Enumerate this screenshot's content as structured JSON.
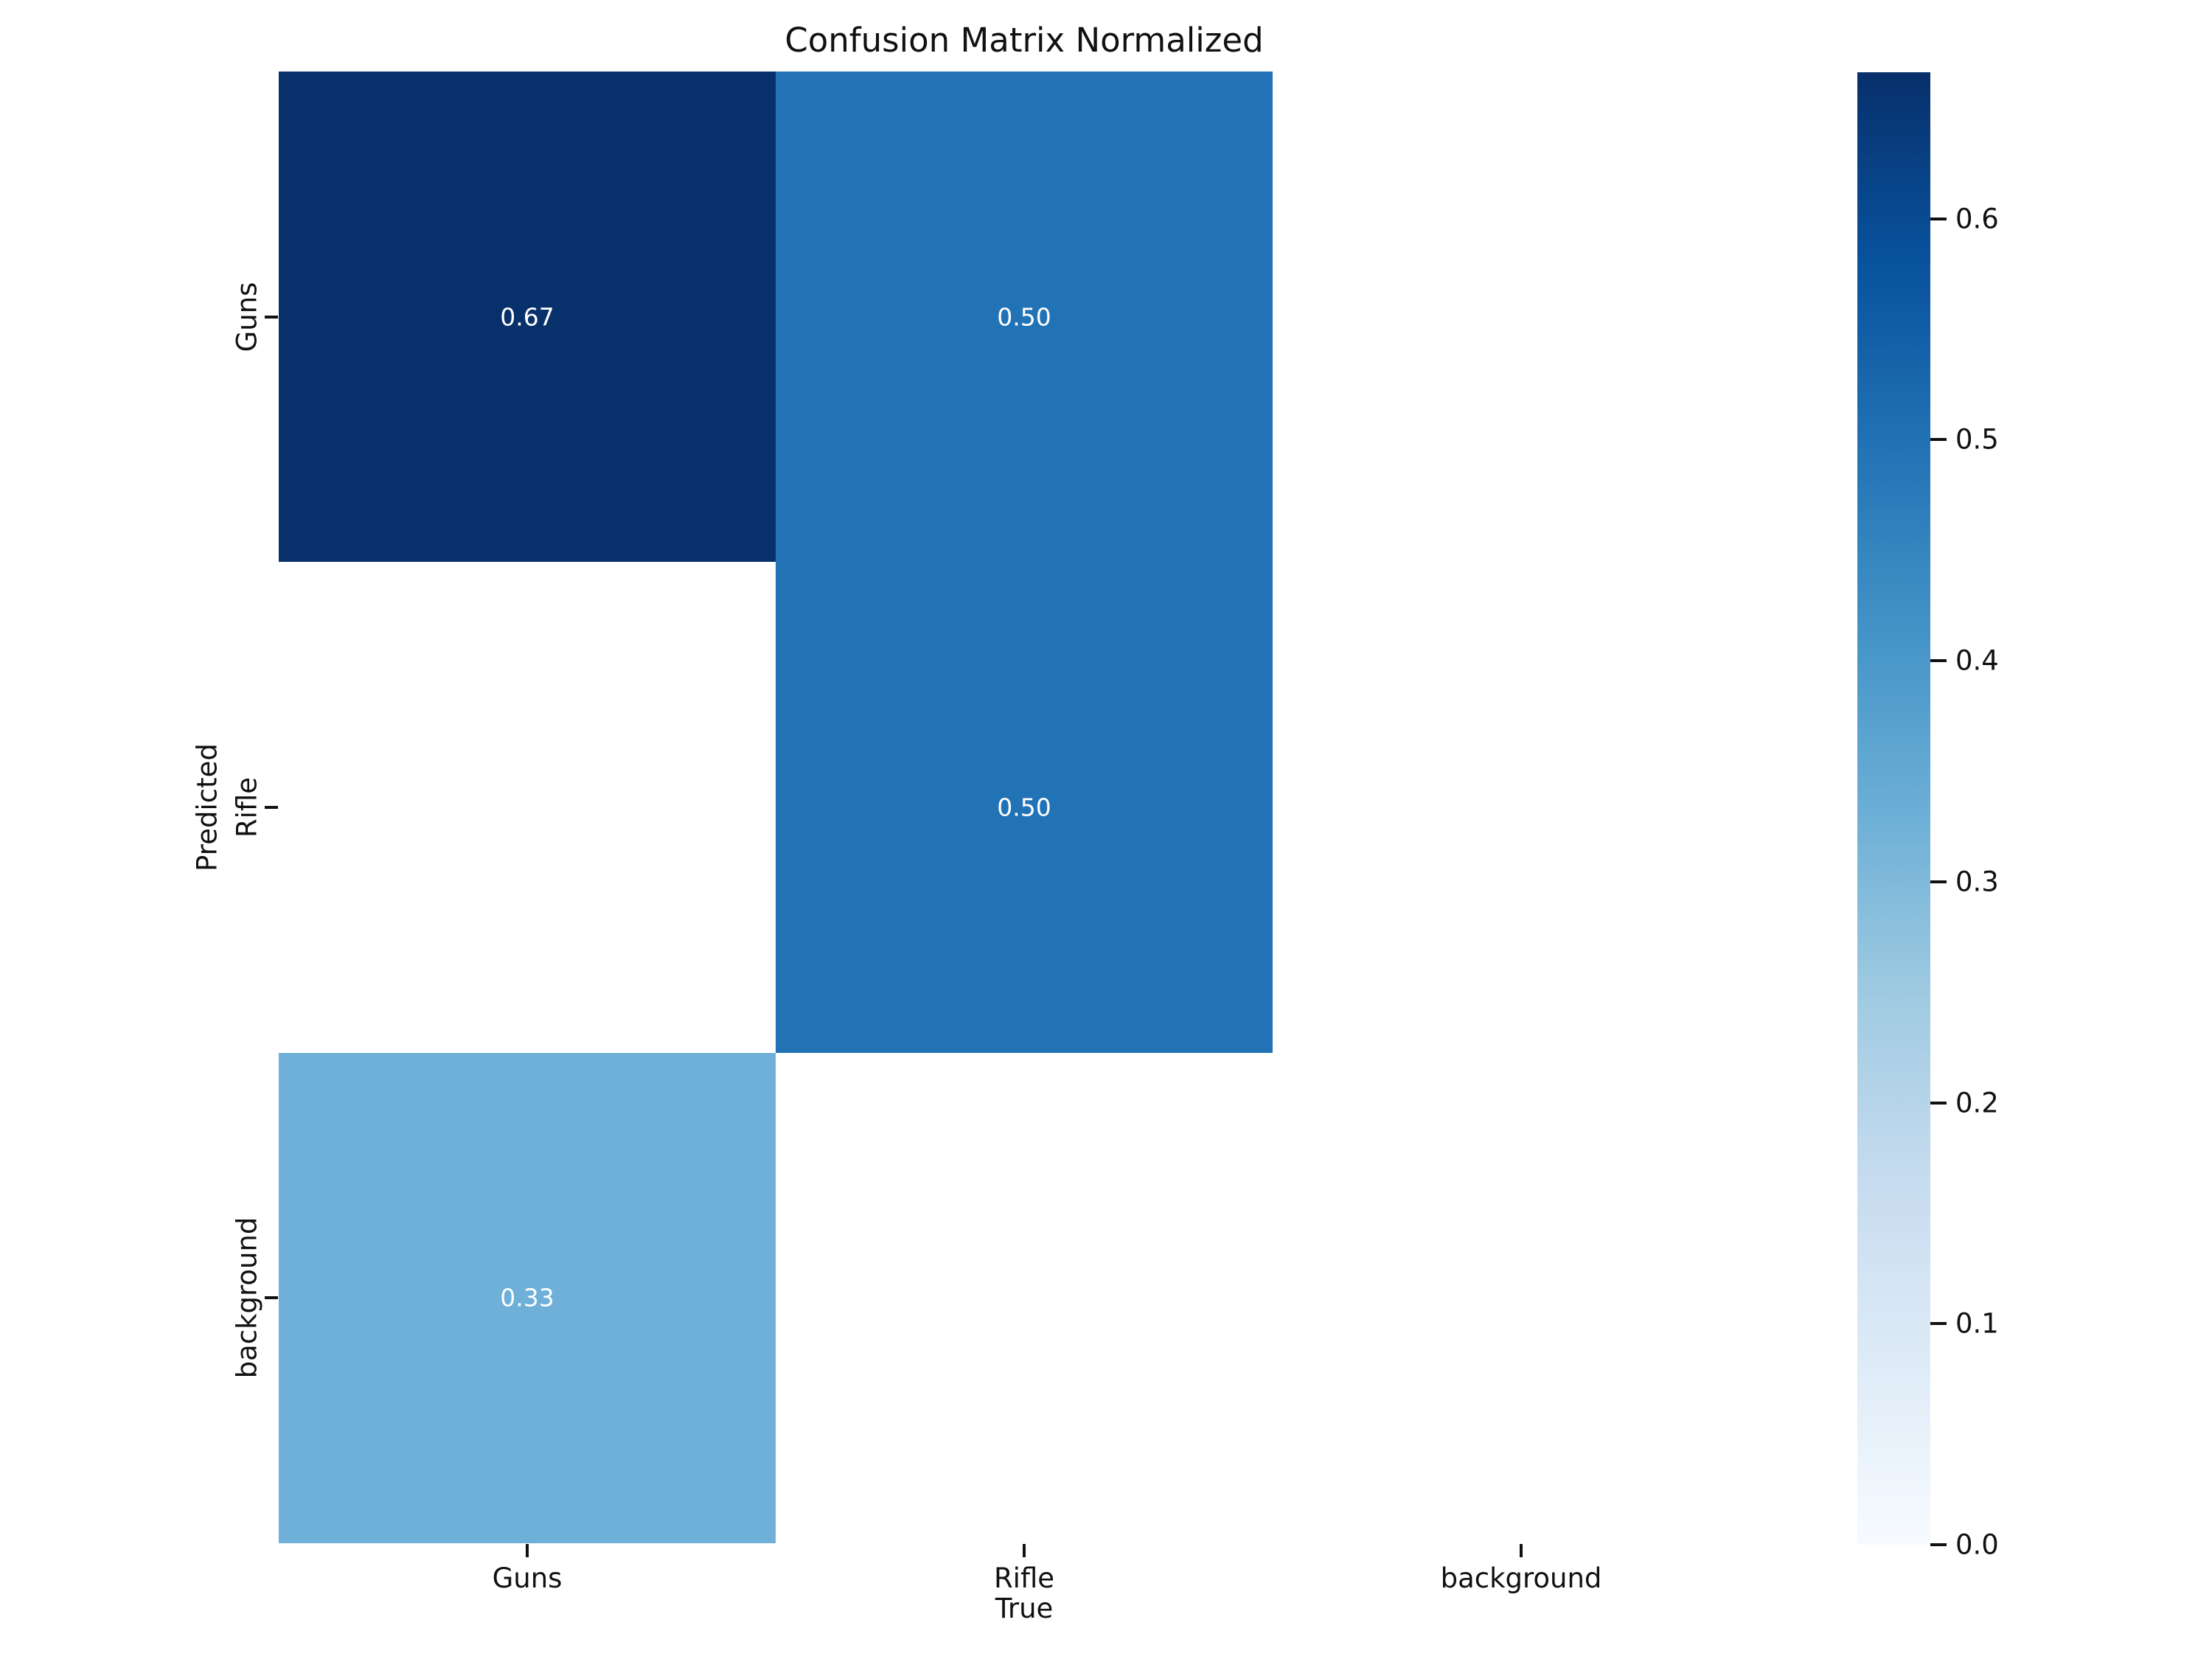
{
  "chart_data": {
    "type": "heatmap",
    "title": "Confusion Matrix Normalized",
    "xlabel": "True",
    "ylabel": "Predicted",
    "x_categories": [
      "Guns",
      "Rifle",
      "background"
    ],
    "y_categories": [
      "Guns",
      "Rifle",
      "background"
    ],
    "matrix": [
      [
        0.67,
        0.5,
        null
      ],
      [
        null,
        0.5,
        null
      ],
      [
        0.33,
        null,
        null
      ]
    ],
    "cell_labels": [
      [
        "0.67",
        "0.50",
        ""
      ],
      [
        "",
        "0.50",
        ""
      ],
      [
        "0.33",
        "",
        ""
      ]
    ],
    "colormap": "Blues",
    "vmin": 0.0,
    "vmax": 0.67,
    "colorbar_tick_labels": [
      "0.6",
      "0.5",
      "0.4",
      "0.3",
      "0.2",
      "0.1",
      "0.0"
    ],
    "colorbar_tick_values": [
      0.6,
      0.5,
      0.4,
      0.3,
      0.2,
      0.1,
      0.0
    ],
    "colorbar_top_value": 0.6663,
    "legend_position": "right",
    "grid": false,
    "annotation_color": "#ffffff",
    "cell_colors": {
      "0.67": "#08306b",
      "0.50": "#2272b5",
      "0.33": "#6caed6",
      "empty": "#ffffff"
    },
    "text_color": "#111111"
  }
}
